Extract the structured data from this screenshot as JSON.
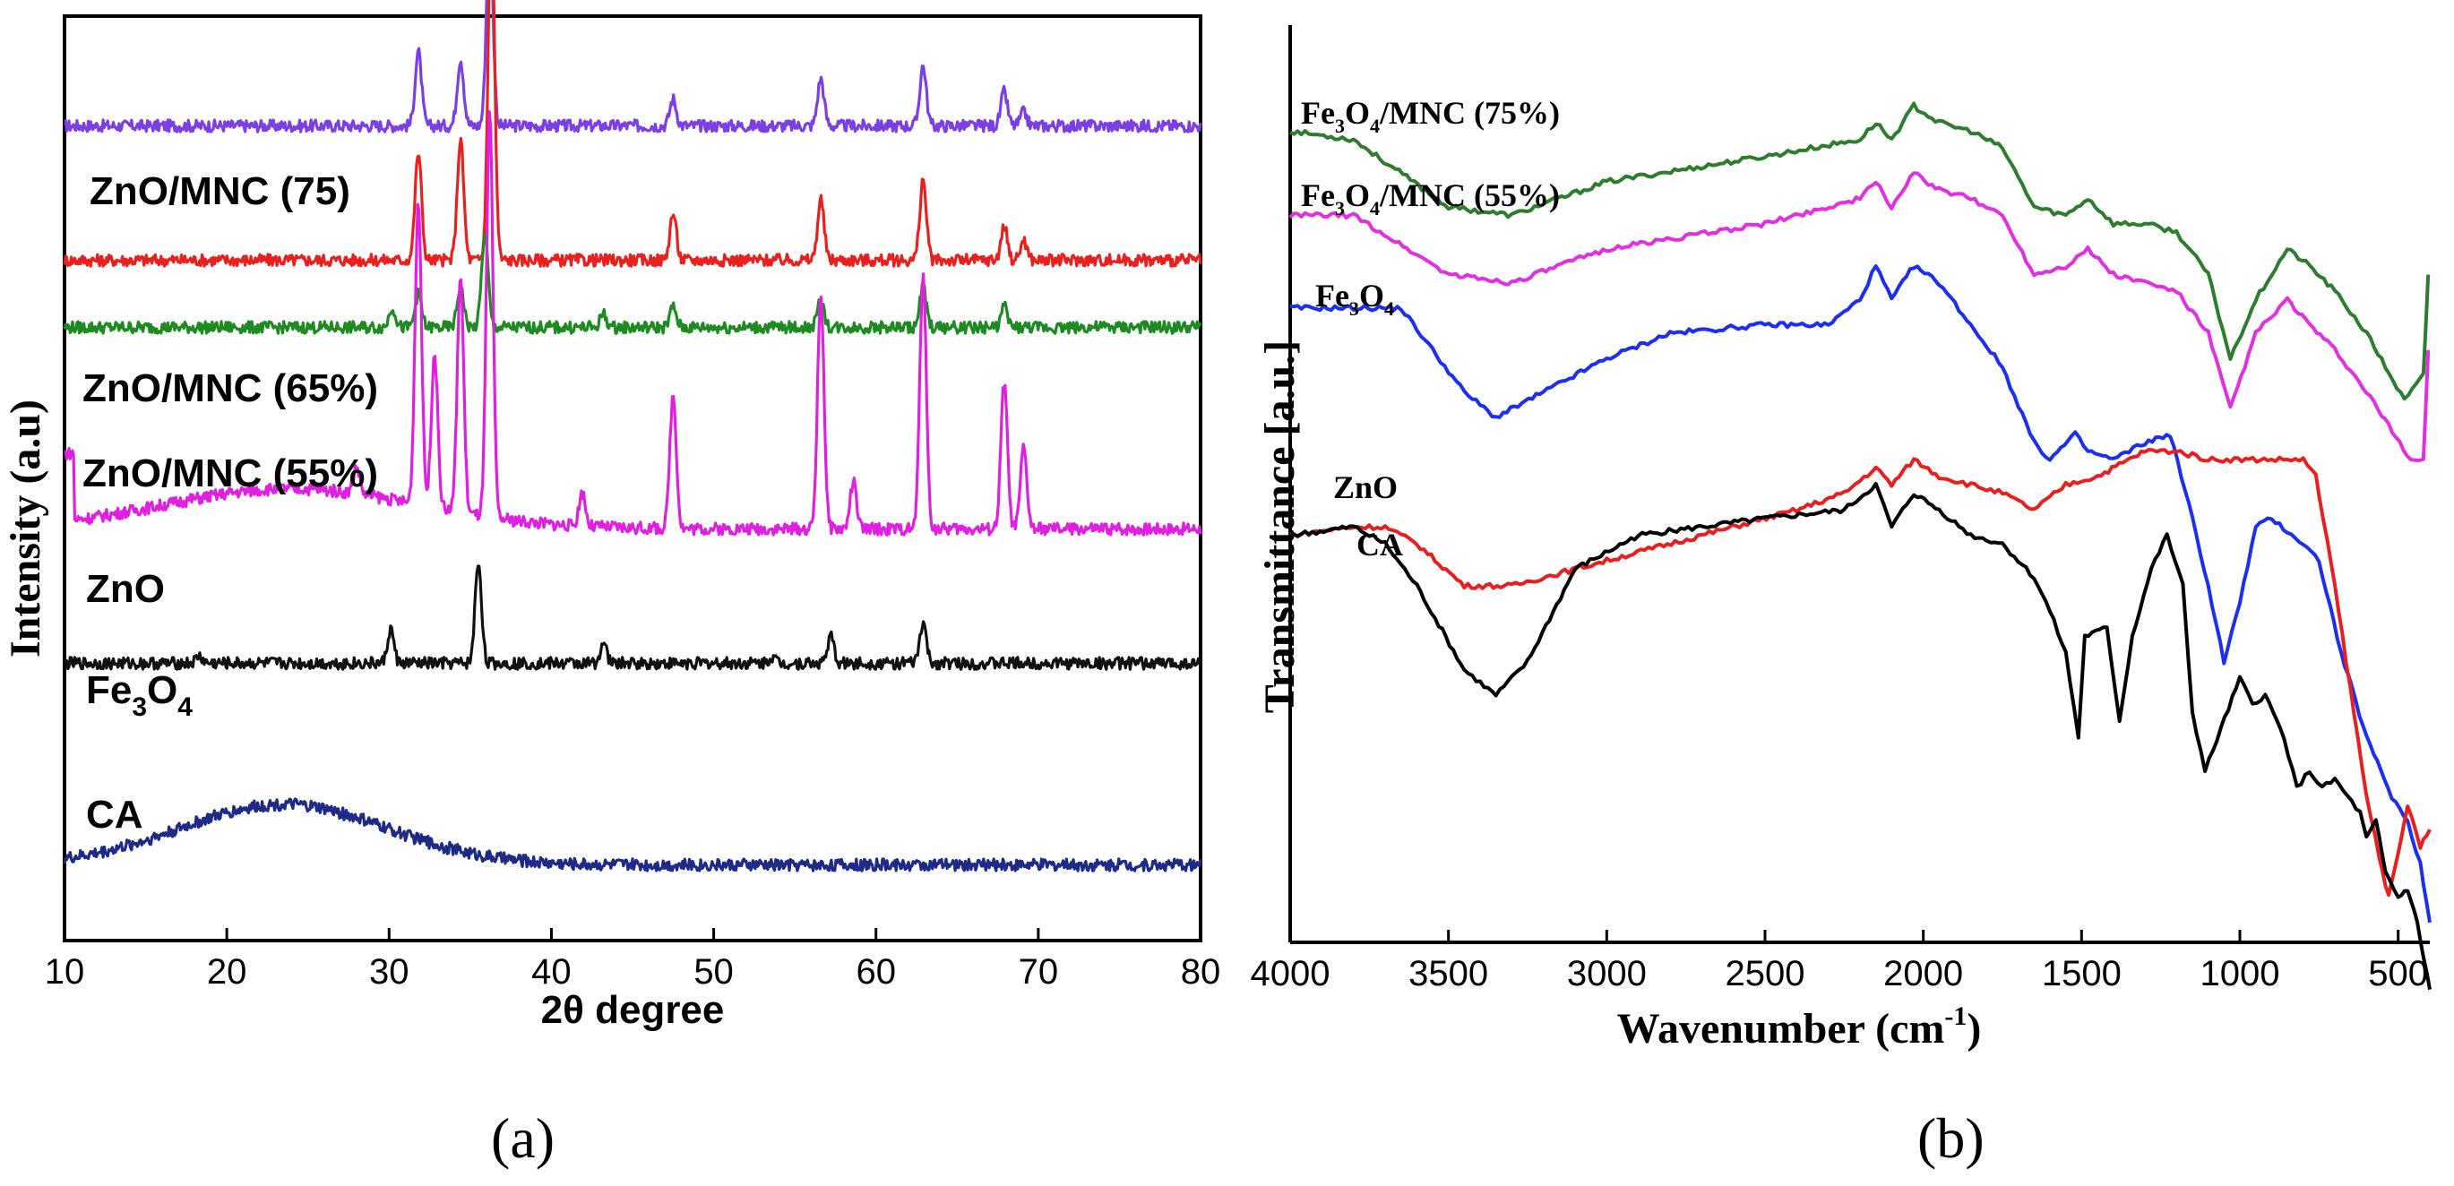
{
  "chart_data": [
    {
      "type": "line",
      "panel": "(a)",
      "title": "",
      "xlabel": "2θ degree",
      "ylabel": "Intensity (a.u)",
      "xlim": [
        10,
        80
      ],
      "xticks": [
        10,
        20,
        30,
        40,
        50,
        60,
        70,
        80
      ],
      "yticks": [],
      "series": [
        {
          "name": "ZnO/MNC (75)",
          "color": "#7b3fe4",
          "baseline": 0.8,
          "peaks": [
            [
              31.8,
              0.11
            ],
            [
              34.4,
              0.1
            ],
            [
              36.2,
              0.3
            ],
            [
              47.5,
              0.04
            ],
            [
              56.6,
              0.07
            ],
            [
              62.9,
              0.09
            ],
            [
              67.9,
              0.05
            ],
            [
              69.1,
              0.02
            ]
          ]
        },
        {
          "name": "ZnO/MNC (65%)",
          "color": "#e8211e",
          "baseline": 0.6,
          "peaks": [
            [
              31.8,
              0.16
            ],
            [
              34.4,
              0.18
            ],
            [
              36.3,
              0.52
            ],
            [
              47.5,
              0.07
            ],
            [
              56.6,
              0.09
            ],
            [
              62.9,
              0.12
            ],
            [
              67.9,
              0.05
            ],
            [
              69.1,
              0.03
            ]
          ]
        },
        {
          "name": "ZnO/MNC (55%)",
          "color": "#1e8a22",
          "baseline": 0.5,
          "peaks": [
            [
              30.2,
              0.03
            ],
            [
              31.8,
              0.05
            ],
            [
              34.4,
              0.06
            ],
            [
              35.9,
              0.14
            ],
            [
              43.2,
              0.02
            ],
            [
              47.5,
              0.03
            ],
            [
              56.6,
              0.04
            ],
            [
              62.9,
              0.06
            ],
            [
              67.9,
              0.03
            ]
          ]
        },
        {
          "name": "ZnO",
          "color": "#e020e0",
          "baseline": 0.2,
          "peaks": [
            [
              28.0,
              0.04
            ],
            [
              31.8,
              0.45
            ],
            [
              32.8,
              0.23
            ],
            [
              34.4,
              0.35
            ],
            [
              36.2,
              0.6
            ],
            [
              41.9,
              0.05
            ],
            [
              47.5,
              0.2
            ],
            [
              56.6,
              0.35
            ],
            [
              58.6,
              0.07
            ],
            [
              62.9,
              0.38
            ],
            [
              67.9,
              0.22
            ],
            [
              69.1,
              0.12
            ]
          ]
        },
        {
          "name": "Fe3O4",
          "color": "#111111",
          "baseline": 0.0,
          "peaks": [
            [
              18.3,
              0.01
            ],
            [
              30.1,
              0.05
            ],
            [
              35.5,
              0.15
            ],
            [
              43.2,
              0.03
            ],
            [
              53.6,
              0.01
            ],
            [
              57.2,
              0.04
            ],
            [
              62.9,
              0.06
            ]
          ]
        },
        {
          "name": "CA",
          "color": "#1f2a86",
          "baseline": -0.3,
          "hump": {
            "center": 23.5,
            "width": 9,
            "height": 0.09
          }
        }
      ]
    },
    {
      "type": "line",
      "panel": "(b)",
      "title": "",
      "xlabel": "Wavenumber (cm",
      "xlabel_sup": "-1",
      "xlabel_close": ")",
      "ylabel": "Transmittance [a.u.]",
      "xlim": [
        4000,
        400
      ],
      "xticks": [
        4000,
        3500,
        3000,
        2500,
        2000,
        1500,
        1000,
        500
      ],
      "series": [
        {
          "name": "Fe3O4/MNC (75%)",
          "color": "#2e7d2e",
          "points": [
            [
              4000,
              0.94
            ],
            [
              3800,
              0.93
            ],
            [
              3500,
              0.85
            ],
            [
              3300,
              0.84
            ],
            [
              3000,
              0.88
            ],
            [
              2500,
              0.91
            ],
            [
              2200,
              0.93
            ],
            [
              2150,
              0.95
            ],
            [
              2100,
              0.93
            ],
            [
              2030,
              0.97
            ],
            [
              1950,
              0.95
            ],
            [
              1850,
              0.94
            ],
            [
              1750,
              0.92
            ],
            [
              1650,
              0.85
            ],
            [
              1550,
              0.84
            ],
            [
              1480,
              0.86
            ],
            [
              1400,
              0.83
            ],
            [
              1300,
              0.83
            ],
            [
              1200,
              0.82
            ],
            [
              1100,
              0.77
            ],
            [
              1030,
              0.67
            ],
            [
              950,
              0.74
            ],
            [
              850,
              0.8
            ],
            [
              780,
              0.78
            ],
            [
              700,
              0.75
            ],
            [
              600,
              0.7
            ],
            [
              480,
              0.62
            ],
            [
              420,
              0.65
            ],
            [
              405,
              0.77
            ]
          ]
        },
        {
          "name": "Fe3O4/MNC (55%)",
          "color": "#e030e0",
          "points": [
            [
              4000,
              0.84
            ],
            [
              3800,
              0.84
            ],
            [
              3500,
              0.77
            ],
            [
              3300,
              0.76
            ],
            [
              3000,
              0.8
            ],
            [
              2500,
              0.83
            ],
            [
              2200,
              0.86
            ],
            [
              2150,
              0.88
            ],
            [
              2100,
              0.85
            ],
            [
              2030,
              0.89
            ],
            [
              1950,
              0.87
            ],
            [
              1850,
              0.86
            ],
            [
              1750,
              0.84
            ],
            [
              1650,
              0.77
            ],
            [
              1550,
              0.78
            ],
            [
              1480,
              0.8
            ],
            [
              1400,
              0.77
            ],
            [
              1300,
              0.76
            ],
            [
              1200,
              0.75
            ],
            [
              1100,
              0.7
            ],
            [
              1030,
              0.61
            ],
            [
              950,
              0.7
            ],
            [
              850,
              0.74
            ],
            [
              780,
              0.71
            ],
            [
              700,
              0.68
            ],
            [
              600,
              0.63
            ],
            [
              460,
              0.55
            ],
            [
              420,
              0.55
            ],
            [
              405,
              0.68
            ]
          ]
        },
        {
          "name": "Fe3O4",
          "color": "#1c2ef0",
          "points": [
            [
              4000,
              0.73
            ],
            [
              3800,
              0.73
            ],
            [
              3650,
              0.73
            ],
            [
              3550,
              0.68
            ],
            [
              3450,
              0.63
            ],
            [
              3350,
              0.6
            ],
            [
              3200,
              0.63
            ],
            [
              3000,
              0.67
            ],
            [
              2800,
              0.7
            ],
            [
              2500,
              0.71
            ],
            [
              2300,
              0.71
            ],
            [
              2200,
              0.74
            ],
            [
              2150,
              0.78
            ],
            [
              2100,
              0.74
            ],
            [
              2030,
              0.78
            ],
            [
              1950,
              0.76
            ],
            [
              1850,
              0.71
            ],
            [
              1750,
              0.66
            ],
            [
              1650,
              0.57
            ],
            [
              1600,
              0.55
            ],
            [
              1520,
              0.58
            ],
            [
              1480,
              0.56
            ],
            [
              1400,
              0.55
            ],
            [
              1300,
              0.57
            ],
            [
              1220,
              0.58
            ],
            [
              1150,
              0.48
            ],
            [
              1100,
              0.4
            ],
            [
              1050,
              0.31
            ],
            [
              1000,
              0.38
            ],
            [
              950,
              0.47
            ],
            [
              900,
              0.48
            ],
            [
              800,
              0.45
            ],
            [
              750,
              0.43
            ],
            [
              680,
              0.32
            ],
            [
              600,
              0.22
            ],
            [
              520,
              0.15
            ],
            [
              470,
              0.12
            ],
            [
              430,
              0.07
            ],
            [
              400,
              0.0
            ]
          ]
        },
        {
          "name": "ZnO",
          "color": "#e81f1f",
          "points": [
            [
              4000,
              0.46
            ],
            [
              3800,
              0.47
            ],
            [
              3700,
              0.47
            ],
            [
              3600,
              0.45
            ],
            [
              3450,
              0.4
            ],
            [
              3300,
              0.4
            ],
            [
              3000,
              0.43
            ],
            [
              2700,
              0.46
            ],
            [
              2400,
              0.49
            ],
            [
              2250,
              0.51
            ],
            [
              2150,
              0.54
            ],
            [
              2100,
              0.52
            ],
            [
              2030,
              0.55
            ],
            [
              1950,
              0.53
            ],
            [
              1850,
              0.52
            ],
            [
              1750,
              0.51
            ],
            [
              1650,
              0.49
            ],
            [
              1550,
              0.52
            ],
            [
              1450,
              0.53
            ],
            [
              1300,
              0.56
            ],
            [
              1200,
              0.56
            ],
            [
              1100,
              0.55
            ],
            [
              900,
              0.55
            ],
            [
              800,
              0.55
            ],
            [
              760,
              0.53
            ],
            [
              700,
              0.4
            ],
            [
              640,
              0.25
            ],
            [
              600,
              0.15
            ],
            [
              560,
              0.08
            ],
            [
              530,
              0.03
            ],
            [
              500,
              0.08
            ],
            [
              470,
              0.14
            ],
            [
              430,
              0.09
            ],
            [
              400,
              0.11
            ]
          ]
        },
        {
          "name": "CA",
          "color": "#000000",
          "points": [
            [
              4000,
              0.46
            ],
            [
              3800,
              0.47
            ],
            [
              3700,
              0.45
            ],
            [
              3600,
              0.4
            ],
            [
              3450,
              0.3
            ],
            [
              3350,
              0.27
            ],
            [
              3250,
              0.31
            ],
            [
              3100,
              0.42
            ],
            [
              2900,
              0.46
            ],
            [
              2500,
              0.48
            ],
            [
              2250,
              0.49
            ],
            [
              2150,
              0.52
            ],
            [
              2100,
              0.47
            ],
            [
              2030,
              0.51
            ],
            [
              1950,
              0.49
            ],
            [
              1850,
              0.46
            ],
            [
              1750,
              0.45
            ],
            [
              1650,
              0.41
            ],
            [
              1600,
              0.37
            ],
            [
              1550,
              0.32
            ],
            [
              1510,
              0.22
            ],
            [
              1490,
              0.34
            ],
            [
              1420,
              0.35
            ],
            [
              1380,
              0.24
            ],
            [
              1340,
              0.34
            ],
            [
              1280,
              0.42
            ],
            [
              1230,
              0.46
            ],
            [
              1180,
              0.4
            ],
            [
              1150,
              0.25
            ],
            [
              1110,
              0.18
            ],
            [
              1060,
              0.23
            ],
            [
              1000,
              0.29
            ],
            [
              960,
              0.26
            ],
            [
              920,
              0.27
            ],
            [
              860,
              0.22
            ],
            [
              820,
              0.16
            ],
            [
              780,
              0.18
            ],
            [
              740,
              0.16
            ],
            [
              700,
              0.17
            ],
            [
              660,
              0.15
            ],
            [
              620,
              0.13
            ],
            [
              600,
              0.1
            ],
            [
              570,
              0.12
            ],
            [
              540,
              0.06
            ],
            [
              500,
              0.03
            ],
            [
              470,
              0.04
            ],
            [
              440,
              0.0
            ],
            [
              420,
              -0.04
            ],
            [
              400,
              -0.08
            ]
          ]
        }
      ]
    }
  ],
  "panel_a_labels": {
    "zno_mnc75": "ZnO/MNC (75)",
    "zno_mnc65": "ZnO/MNC (65%)",
    "zno_mnc55": "ZnO/MNC (55%)",
    "zno": "ZnO",
    "fe3o4_main": "Fe",
    "fe3o4_sub1": "3",
    "fe3o4_mid": "O",
    "fe3o4_sub2": "4",
    "ca": "CA"
  },
  "panel_b_labels": {
    "fe75_main": "Fe",
    "fe75_sub1": "3",
    "fe75_mid": "O",
    "fe75_sub2": "4",
    "fe75_rest": "/MNC (75%)",
    "fe55_main": "Fe",
    "fe55_sub1": "3",
    "fe55_mid": "O",
    "fe55_sub2": "4",
    "fe55_rest": "/MNC (55%)",
    "fe_main": "Fe",
    "fe_sub1": "3",
    "fe_mid": "O",
    "fe_sub2": "4",
    "zno": "ZnO",
    "ca": "CA"
  },
  "panel_letters": {
    "a": "(a)",
    "b": "(b)"
  }
}
